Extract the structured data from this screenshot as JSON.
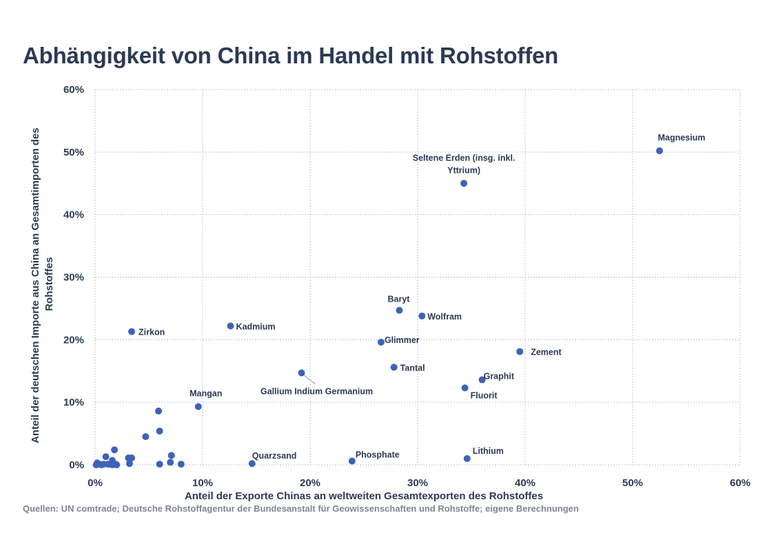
{
  "title": "Abhängigkeit von China im Handel mit Rohstoffen",
  "source": "Quellen: UN comtrade; Deutsche Rohstoffagentur der Bundesanstalt für Geowissenschaften und Rohstoffe; eigene Berechnungen",
  "colors": {
    "point": "#3d63b8",
    "text": "#2b3a55",
    "grid": "#b9c6e0",
    "source": "#7c8696"
  },
  "chart_data": {
    "type": "scatter",
    "title": "Abhängigkeit von China im Handel mit Rohstoffen",
    "xlabel": "Anteil der Exporte Chinas an weltweiten Gesamtexporten des Rohstoffes",
    "ylabel_lines": [
      "Anteil der deutschen Importe aus China an Gesamtimporten des",
      "Rohstoffes"
    ],
    "xlim": [
      0,
      60
    ],
    "ylim": [
      0,
      60
    ],
    "xticks": [
      0,
      10,
      20,
      30,
      40,
      50,
      60
    ],
    "yticks": [
      0,
      10,
      20,
      30,
      40,
      50,
      60
    ],
    "tick_suffix": "%",
    "grid": true,
    "points": [
      {
        "x": 52.5,
        "y": 50.2,
        "label": [
          "Magnesium"
        ]
      },
      {
        "x": 34.3,
        "y": 45.0,
        "label": [
          "Seltene Erden (insg. inkl.",
          "Yttrium)"
        ]
      },
      {
        "x": 28.3,
        "y": 24.7,
        "label": [
          "Baryt"
        ]
      },
      {
        "x": 30.4,
        "y": 23.8,
        "label": [
          "Wolfram"
        ]
      },
      {
        "x": 12.6,
        "y": 22.2,
        "label": [
          "Kadmium"
        ]
      },
      {
        "x": 3.4,
        "y": 21.3,
        "label": [
          "Zirkon"
        ]
      },
      {
        "x": 26.6,
        "y": 19.6,
        "label": [
          "Glimmer"
        ]
      },
      {
        "x": 39.5,
        "y": 18.1,
        "label": [
          "Zement"
        ]
      },
      {
        "x": 27.8,
        "y": 15.6,
        "label": [
          "Tantal"
        ]
      },
      {
        "x": 19.2,
        "y": 14.7,
        "label": [
          "Gallium Indium Germanium"
        ]
      },
      {
        "x": 36.0,
        "y": 13.6,
        "label": [
          "Graphit"
        ]
      },
      {
        "x": 34.4,
        "y": 12.3,
        "label": [
          "Fluorit"
        ]
      },
      {
        "x": 9.6,
        "y": 9.3,
        "label": [
          "Mangan"
        ]
      },
      {
        "x": 14.6,
        "y": 0.2,
        "label": [
          "Quarzsand"
        ]
      },
      {
        "x": 23.9,
        "y": 0.6,
        "label": [
          "Phosphate"
        ]
      },
      {
        "x": 34.6,
        "y": 1.0,
        "label": [
          "Lithium"
        ]
      },
      {
        "x": 5.9,
        "y": 8.6
      },
      {
        "x": 6.0,
        "y": 5.4
      },
      {
        "x": 4.7,
        "y": 4.5
      },
      {
        "x": 1.8,
        "y": 2.4
      },
      {
        "x": 7.1,
        "y": 1.5
      },
      {
        "x": 1.0,
        "y": 1.3
      },
      {
        "x": 3.1,
        "y": 1.1
      },
      {
        "x": 3.4,
        "y": 1.1
      },
      {
        "x": 1.6,
        "y": 0.7
      },
      {
        "x": 7.0,
        "y": 0.4
      },
      {
        "x": 0.2,
        "y": 0.3
      },
      {
        "x": 3.2,
        "y": 0.2
      },
      {
        "x": 6.0,
        "y": 0.1
      },
      {
        "x": 8.0,
        "y": 0.1
      },
      {
        "x": 0.4,
        "y": 0.1
      },
      {
        "x": 0.8,
        "y": 0.1
      },
      {
        "x": 1.2,
        "y": 0.1
      },
      {
        "x": 1.4,
        "y": 0.1
      },
      {
        "x": 1.9,
        "y": 0.1
      },
      {
        "x": 0.1,
        "y": 0.0
      },
      {
        "x": 0.6,
        "y": 0.0
      },
      {
        "x": 1.6,
        "y": 0.0
      },
      {
        "x": 2.0,
        "y": 0.0
      }
    ]
  }
}
